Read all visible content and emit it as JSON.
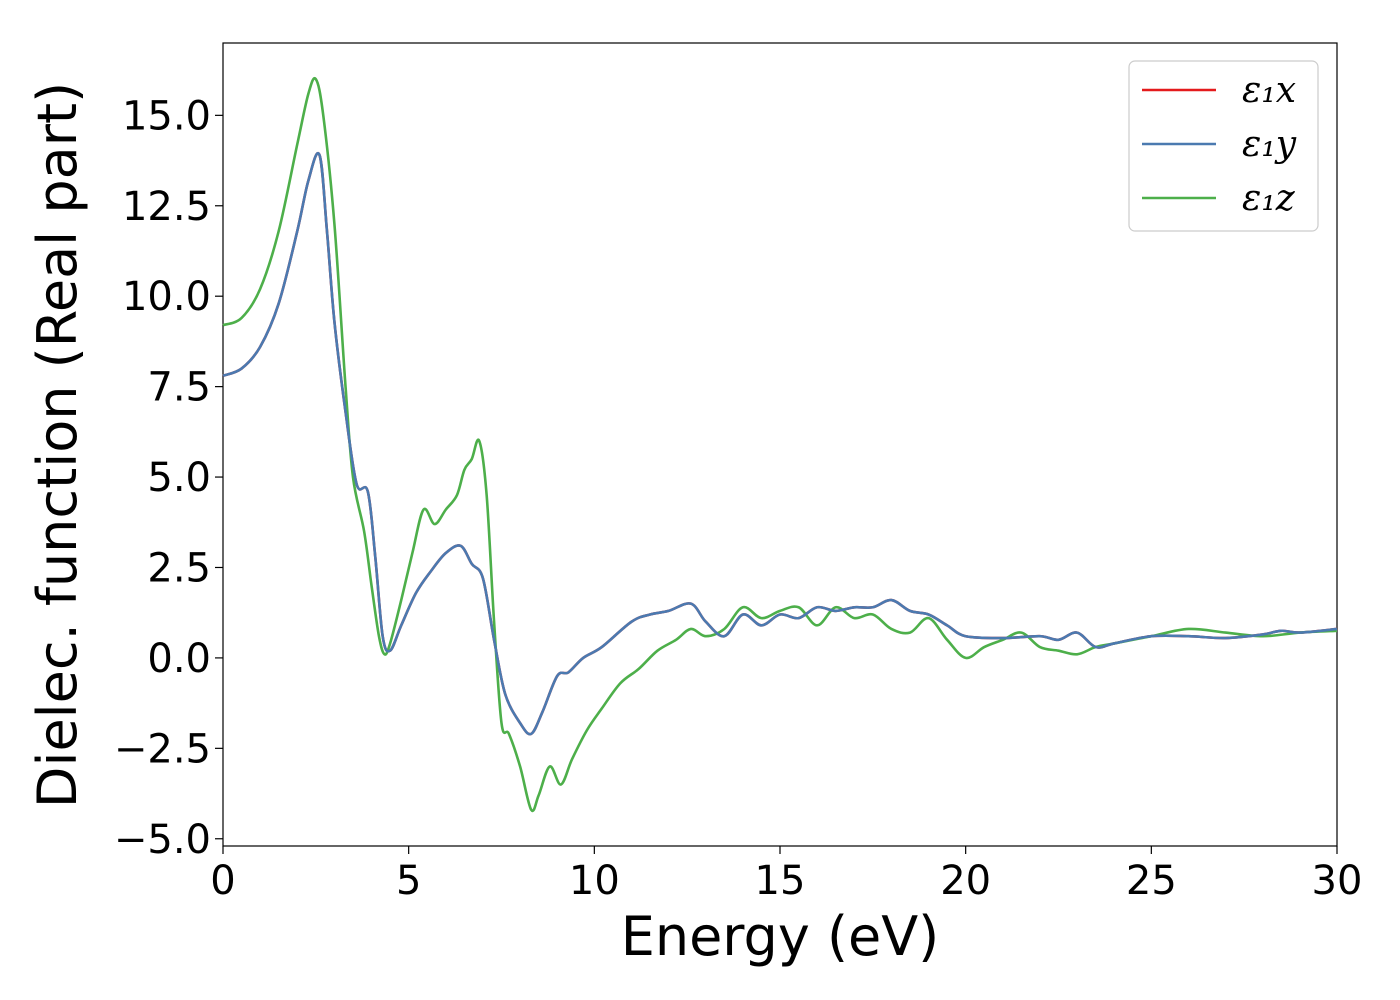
{
  "chart_data": {
    "type": "line",
    "xlabel": "Energy (eV)",
    "ylabel": "Dielec. function (Real part)",
    "xlim": [
      0,
      30
    ],
    "ylim": [
      -5.2,
      17.0
    ],
    "xticks": [
      0,
      5,
      10,
      15,
      20,
      25,
      30
    ],
    "xtick_labels": [
      "0",
      "5",
      "10",
      "15",
      "20",
      "25",
      "30"
    ],
    "yticks": [
      -5.0,
      -2.5,
      0.0,
      2.5,
      5.0,
      7.5,
      10.0,
      12.5,
      15.0
    ],
    "ytick_labels": [
      "−5.0",
      "−2.5",
      "0.0",
      "2.5",
      "5.0",
      "7.5",
      "10.0",
      "12.5",
      "15.0"
    ],
    "grid": false,
    "legend_position": "top-right",
    "series": [
      {
        "name": "ε₁x",
        "color": "#e41a1c",
        "x": [
          0,
          0.5,
          1.0,
          1.5,
          2.0,
          2.3,
          2.6,
          2.8,
          3.0,
          3.3,
          3.6,
          3.9,
          4.1,
          4.3,
          4.5,
          4.8,
          5.2,
          5.6,
          6.0,
          6.4,
          6.7,
          7.0,
          7.3,
          7.6,
          8.0,
          8.3,
          8.6,
          9.0,
          9.3,
          9.7,
          10.2,
          11.0,
          11.5,
          12.0,
          12.6,
          13.0,
          13.5,
          14.0,
          14.5,
          15.0,
          15.5,
          16.0,
          16.5,
          17.0,
          17.5,
          18.0,
          18.5,
          19.0,
          19.5,
          20.0,
          21.0,
          22.0,
          22.5,
          23.0,
          23.5,
          24.0,
          25.0,
          26.0,
          27.0,
          28.0,
          28.5,
          29.0,
          30.0
        ],
        "y": [
          7.8,
          8.0,
          8.6,
          9.8,
          11.8,
          13.2,
          13.9,
          11.8,
          9.3,
          6.8,
          4.8,
          4.6,
          2.8,
          0.6,
          0.2,
          0.9,
          1.8,
          2.4,
          2.9,
          3.1,
          2.6,
          2.2,
          0.5,
          -1.0,
          -1.8,
          -2.1,
          -1.5,
          -0.5,
          -0.4,
          0.0,
          0.3,
          1.0,
          1.2,
          1.3,
          1.5,
          1.0,
          0.6,
          1.2,
          0.9,
          1.2,
          1.1,
          1.4,
          1.3,
          1.4,
          1.4,
          1.6,
          1.3,
          1.2,
          0.9,
          0.6,
          0.55,
          0.6,
          0.5,
          0.7,
          0.3,
          0.4,
          0.6,
          0.6,
          0.55,
          0.65,
          0.75,
          0.7,
          0.8
        ]
      },
      {
        "name": "ε₁y",
        "color": "#4b7ab0",
        "x": [
          0,
          0.5,
          1.0,
          1.5,
          2.0,
          2.3,
          2.6,
          2.8,
          3.0,
          3.3,
          3.6,
          3.9,
          4.1,
          4.3,
          4.5,
          4.8,
          5.2,
          5.6,
          6.0,
          6.4,
          6.7,
          7.0,
          7.3,
          7.6,
          8.0,
          8.3,
          8.6,
          9.0,
          9.3,
          9.7,
          10.2,
          11.0,
          11.5,
          12.0,
          12.6,
          13.0,
          13.5,
          14.0,
          14.5,
          15.0,
          15.5,
          16.0,
          16.5,
          17.0,
          17.5,
          18.0,
          18.5,
          19.0,
          19.5,
          20.0,
          21.0,
          22.0,
          22.5,
          23.0,
          23.5,
          24.0,
          25.0,
          26.0,
          27.0,
          28.0,
          28.5,
          29.0,
          30.0
        ],
        "y": [
          7.8,
          8.0,
          8.6,
          9.8,
          11.8,
          13.2,
          13.9,
          11.8,
          9.3,
          6.8,
          4.8,
          4.6,
          2.8,
          0.6,
          0.2,
          0.9,
          1.8,
          2.4,
          2.9,
          3.1,
          2.6,
          2.2,
          0.5,
          -1.0,
          -1.8,
          -2.1,
          -1.5,
          -0.5,
          -0.4,
          0.0,
          0.3,
          1.0,
          1.2,
          1.3,
          1.5,
          1.0,
          0.6,
          1.2,
          0.9,
          1.2,
          1.1,
          1.4,
          1.3,
          1.4,
          1.4,
          1.6,
          1.3,
          1.2,
          0.9,
          0.6,
          0.55,
          0.6,
          0.5,
          0.7,
          0.3,
          0.4,
          0.6,
          0.6,
          0.55,
          0.65,
          0.75,
          0.7,
          0.8
        ]
      },
      {
        "name": "ε₁z",
        "color": "#4daf4a",
        "x": [
          0,
          0.5,
          1.0,
          1.5,
          2.0,
          2.3,
          2.5,
          2.7,
          3.0,
          3.3,
          3.5,
          3.8,
          4.0,
          4.2,
          4.35,
          4.5,
          4.8,
          5.1,
          5.4,
          5.7,
          6.0,
          6.3,
          6.5,
          6.7,
          6.9,
          7.1,
          7.3,
          7.5,
          7.7,
          8.0,
          8.3,
          8.5,
          8.8,
          9.1,
          9.4,
          9.8,
          10.2,
          10.7,
          11.2,
          11.7,
          12.2,
          12.6,
          13.0,
          13.5,
          14.0,
          14.5,
          15.0,
          15.5,
          16.0,
          16.5,
          17.0,
          17.5,
          18.0,
          18.5,
          19.0,
          19.5,
          20.0,
          20.5,
          21.0,
          21.5,
          22.0,
          22.5,
          23.0,
          23.5,
          24.0,
          25.0,
          26.0,
          27.0,
          28.0,
          29.0,
          30.0
        ],
        "y": [
          9.2,
          9.4,
          10.2,
          11.8,
          14.2,
          15.6,
          16.0,
          15.0,
          12.0,
          7.5,
          5.0,
          3.5,
          2.0,
          0.6,
          0.1,
          0.4,
          1.6,
          2.9,
          4.1,
          3.7,
          4.1,
          4.5,
          5.2,
          5.5,
          6.0,
          4.5,
          1.0,
          -1.8,
          -2.1,
          -3.0,
          -4.2,
          -3.8,
          -3.0,
          -3.5,
          -2.8,
          -2.0,
          -1.4,
          -0.7,
          -0.3,
          0.2,
          0.5,
          0.8,
          0.6,
          0.8,
          1.4,
          1.1,
          1.3,
          1.4,
          0.9,
          1.4,
          1.1,
          1.2,
          0.8,
          0.7,
          1.1,
          0.5,
          0.0,
          0.3,
          0.5,
          0.7,
          0.3,
          0.2,
          0.1,
          0.3,
          0.4,
          0.6,
          0.8,
          0.7,
          0.6,
          0.7,
          0.75
        ]
      }
    ]
  }
}
